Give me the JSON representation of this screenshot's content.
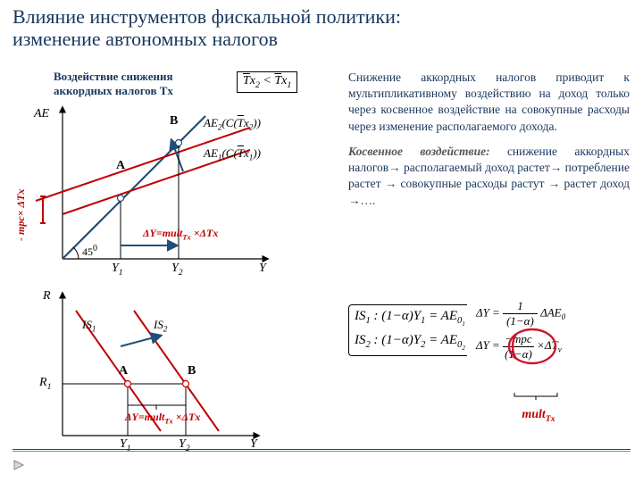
{
  "title_line1": "Влияние инструментов фискальной политики:",
  "title_line2": "изменение автономных налогов",
  "caption": "Воздействие снижения аккордных налогов Tx",
  "ineq_html": "<span style='text-decoration:overline'>T</span>x<sub>2</sub> &lt; <span style='text-decoration:overline'>T</span>x<sub>1</sub>",
  "para1": "Снижение аккордных налогов приводит к мультипликативному воздействию на доход только через косвенное воздействие на совокупные расходы через изменение располагаемого дохода.",
  "para2_em": "Косвенное воздействие: ",
  "para2": "снижение аккордных налогов→ располагаемый доход растет→ потребление растет → совокупные расходы растут → растет доход →….",
  "deltaY_html": "ΔY=mult<sub>Tx</sub> ×ΔTx",
  "vshift_html": "- mpc× ΔTx",
  "angle": "45",
  "angle_sup": "0",
  "AE": "AE",
  "Y": "Y",
  "R": "R",
  "R1": "R",
  "R1sub": "1",
  "Y1": "Y",
  "Y1sub": "1",
  "Y2": "Y",
  "Y2sub": "2",
  "A": "A",
  "B": "B",
  "AE2_html": "AE<sub>2</sub>(C(<span style='text-decoration:overline'>T</span>x<sub>2</sub>))",
  "AE1_html": "AE<sub>1</sub>(C(<span style='text-decoration:overline'>T</span>x<sub>1</sub>))",
  "IS1_html": "IS<sub>1</sub>",
  "IS2_html": "IS<sub>2</sub>",
  "eq_IS1_html": "IS<sub>1</sub> : (1−α)Y<sub>1</sub> = A͘E<sub>0<sub>1</sub></sub>",
  "eq_IS2_html": "IS<sub>2</sub> : (1−α)Y<sub>2</sub> = A͘E<sub>0<sub>2</sub></sub>",
  "eq_dY1_html": "ΔY = <span style='display:inline-block;vertical-align:middle;text-align:center'><span style='display:block;border-bottom:1px solid #000;padding:0 4px'>1</span><span style='display:block;padding:0 4px'>(1−α)</span></span> ΔAE<sub>0</sub>",
  "eq_dY2_html": "ΔY = <span style='display:inline-block;vertical-align:middle;text-align:center'><span style='display:block;border-bottom:1px solid #000;padding:0 2px'>−mpc</span><span style='display:block;padding:0 2px'>(1−α)</span></span> ×ΔT<sub>v</sub>",
  "multTx_html": "mult<sub>Tx</sub>",
  "c_title": "#17365d",
  "c_red": "#c00000",
  "c_blue": "#1f4e79",
  "c_scribble": "#d0142c"
}
